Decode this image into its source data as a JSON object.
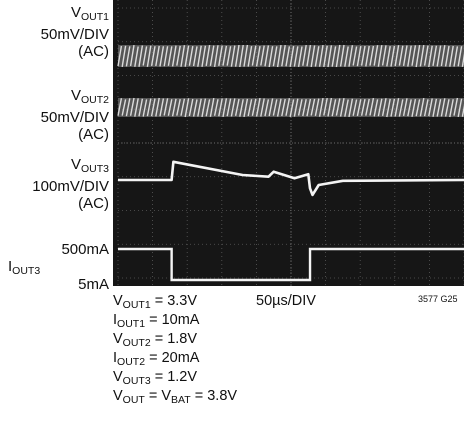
{
  "chart_data": {
    "type": "line",
    "channels": [
      {
        "name_main": "V",
        "name_sub": "OUT1",
        "scale": "50mV/DIV",
        "coupling": "(AC)"
      },
      {
        "name_main": "V",
        "name_sub": "OUT2",
        "scale": "50mV/DIV",
        "coupling": "(AC)"
      },
      {
        "name_main": "V",
        "name_sub": "OUT3",
        "scale": "100mV/DIV",
        "coupling": "(AC)"
      },
      {
        "name_main": "I",
        "name_sub": "OUT3",
        "level_high": "500mA",
        "level_low": "5mA"
      }
    ],
    "timebase": "50µs/DIV",
    "x_divisions": 10,
    "y_divisions": 8,
    "load_step": {
      "rise_div": 1.55,
      "fall_div": 5.55
    },
    "vout3_trace": {
      "x_div": [
        0,
        1.55,
        1.6,
        3.6,
        4.35,
        4.5,
        5.1,
        5.5,
        5.55,
        5.62,
        5.8,
        6.5,
        10
      ],
      "y_div": [
        0,
        0,
        1.1,
        0.3,
        0.2,
        0.5,
        0.1,
        0.35,
        -0.5,
        -0.9,
        -0.3,
        -0.05,
        0
      ]
    },
    "grid": true,
    "figure_id": "3577 G25"
  },
  "conditions": [
    {
      "main": "V",
      "sub": "OUT1",
      "rest": " = 3.3V"
    },
    {
      "main": "I",
      "sub": "OUT1",
      "rest": " = 10mA"
    },
    {
      "main": "V",
      "sub": "OUT2",
      "rest": " = 1.8V"
    },
    {
      "main": "I",
      "sub": "OUT2",
      "rest": " = 20mA"
    },
    {
      "main": "V",
      "sub": "OUT3",
      "rest": " = 1.2V"
    },
    {
      "main": "V",
      "sub": "OUT",
      "rest": " = V",
      "sub2": "BAT",
      "rest2": " = 3.8V"
    }
  ]
}
